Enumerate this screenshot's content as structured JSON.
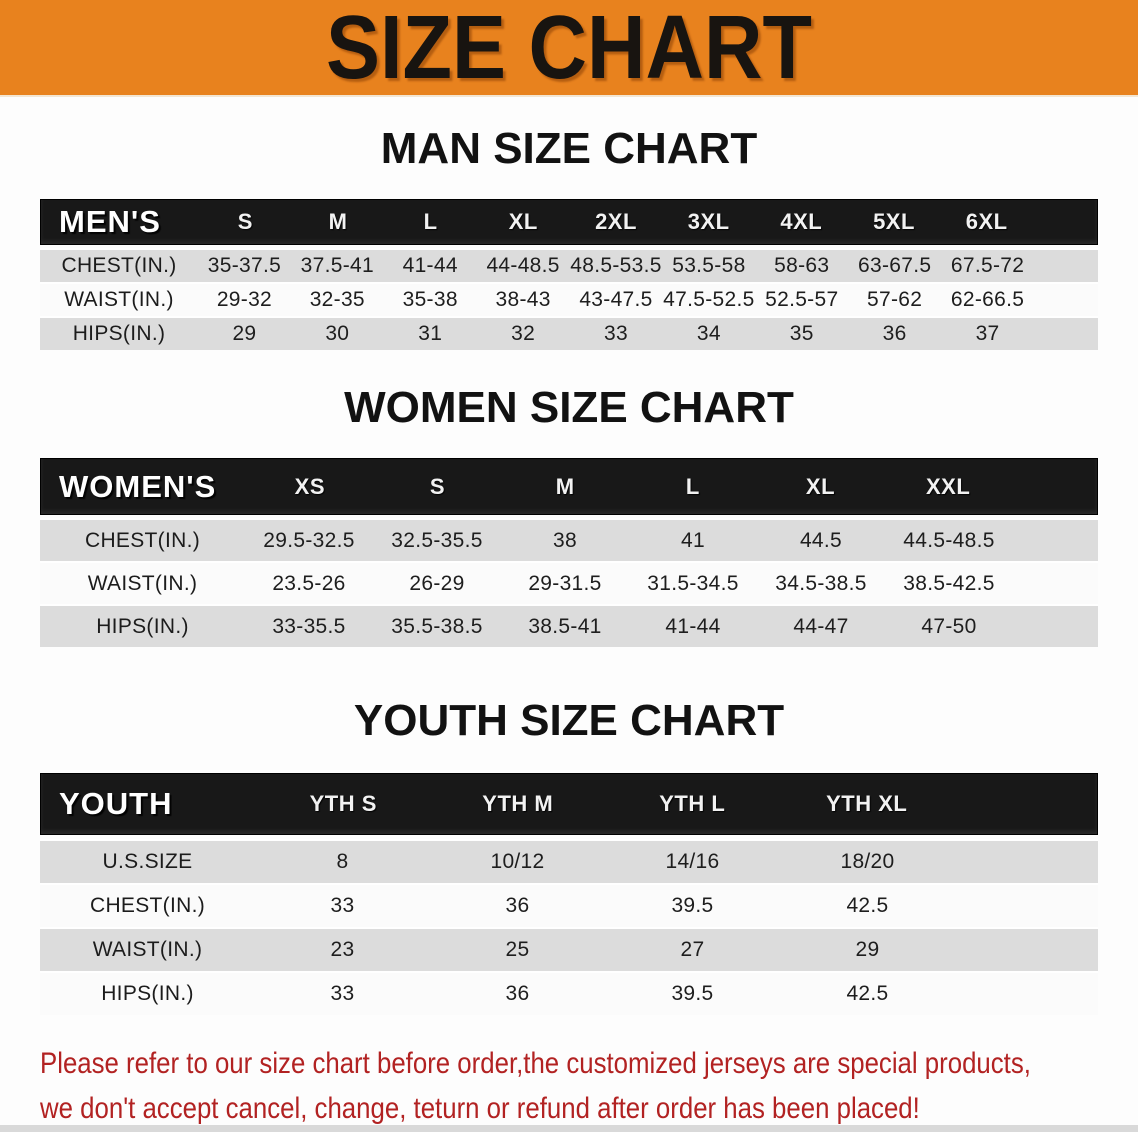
{
  "banner": {
    "title": "SIZE CHART",
    "bg_color": "#e8821e",
    "text_color": "#181410"
  },
  "sections": [
    {
      "heading": "MAN SIZE CHART",
      "table": {
        "label": "MEN'S",
        "columns": [
          "S",
          "M",
          "L",
          "XL",
          "2XL",
          "3XL",
          "4XL",
          "5XL",
          "6XL"
        ],
        "rows": [
          {
            "label": "CHEST(IN.)",
            "values": [
              "35-37.5",
              "37.5-41",
              "41-44",
              "44-48.5",
              "48.5-53.5",
              "53.5-58",
              "58-63",
              "63-67.5",
              "67.5-72"
            ]
          },
          {
            "label": "WAIST(IN.)",
            "values": [
              "29-32",
              "32-35",
              "35-38",
              "38-43",
              "43-47.5",
              "47.5-52.5",
              "52.5-57",
              "57-62",
              "62-66.5"
            ]
          },
          {
            "label": "HIPS(IN.)",
            "values": [
              "29",
              "30",
              "31",
              "32",
              "33",
              "34",
              "35",
              "36",
              "37"
            ]
          }
        ]
      }
    },
    {
      "heading": "WOMEN SIZE CHART",
      "table": {
        "label": "WOMEN'S",
        "columns": [
          "XS",
          "S",
          "M",
          "L",
          "XL",
          "XXL"
        ],
        "rows": [
          {
            "label": "CHEST(IN.)",
            "values": [
              "29.5-32.5",
              "32.5-35.5",
              "38",
              "41",
              "44.5",
              "44.5-48.5"
            ]
          },
          {
            "label": "WAIST(IN.)",
            "values": [
              "23.5-26",
              "26-29",
              "29-31.5",
              "31.5-34.5",
              "34.5-38.5",
              "38.5-42.5"
            ]
          },
          {
            "label": "HIPS(IN.)",
            "values": [
              "33-35.5",
              "35.5-38.5",
              "38.5-41",
              "41-44",
              "44-47",
              "47-50"
            ]
          }
        ]
      }
    },
    {
      "heading": "YOUTH SIZE CHART",
      "table": {
        "label": "YOUTH",
        "columns": [
          "YTH S",
          "YTH M",
          "YTH L",
          "YTH XL"
        ],
        "rows": [
          {
            "label": "U.S.SIZE",
            "values": [
              "8",
              "10/12",
              "14/16",
              "18/20"
            ]
          },
          {
            "label": "CHEST(IN.)",
            "values": [
              "33",
              "36",
              "39.5",
              "42.5"
            ]
          },
          {
            "label": "WAIST(IN.)",
            "values": [
              "23",
              "25",
              "27",
              "29"
            ]
          },
          {
            "label": "HIPS(IN.)",
            "values": [
              "33",
              "36",
              "39.5",
              "42.5"
            ]
          }
        ]
      }
    }
  ],
  "footer": {
    "line1": "Please refer to our size chart before order,the customized jerseys are special products,",
    "line2": "we don't accept cancel, change, teturn or refund after order has been placed!",
    "color": "#b22222"
  },
  "style_colors": {
    "table_header_bg": "#181818",
    "row_gray": "#dcdcdc",
    "row_white": "#fbfbfb"
  }
}
